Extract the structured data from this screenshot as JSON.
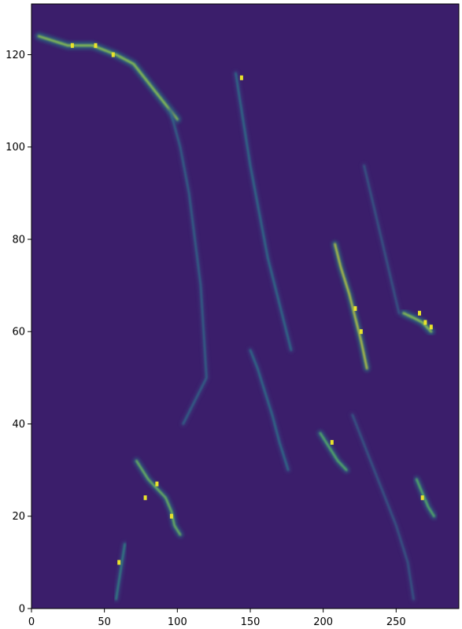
{
  "chart_data": {
    "type": "heatmap",
    "title": "",
    "xlabel": "",
    "ylabel": "",
    "xlim": [
      0,
      293
    ],
    "ylim": [
      0,
      131
    ],
    "colormap": "viridis",
    "background_color": "#3b1e6b",
    "x_ticks": [
      0,
      50,
      100,
      150,
      200,
      250
    ],
    "y_ticks": [
      0,
      20,
      40,
      60,
      80,
      100,
      120
    ],
    "grid": false,
    "legend": "none",
    "streaks": [
      {
        "label": "top-left bright band",
        "points": [
          [
            5,
            124
          ],
          [
            25,
            122
          ],
          [
            42,
            122
          ],
          [
            58,
            120
          ],
          [
            70,
            118
          ],
          [
            85,
            112
          ],
          [
            100,
            106
          ]
        ],
        "intensity": 0.85,
        "width": 3
      },
      {
        "label": "left long filament",
        "points": [
          [
            95,
            108
          ],
          [
            102,
            100
          ],
          [
            108,
            90
          ],
          [
            112,
            80
          ],
          [
            116,
            70
          ],
          [
            118,
            60
          ],
          [
            120,
            50
          ],
          [
            104,
            40
          ]
        ],
        "intensity": 0.4,
        "width": 2
      },
      {
        "label": "upper middle filament",
        "points": [
          [
            140,
            116
          ],
          [
            143,
            110
          ],
          [
            146,
            104
          ],
          [
            150,
            96
          ],
          [
            156,
            86
          ],
          [
            162,
            76
          ],
          [
            170,
            66
          ],
          [
            178,
            56
          ]
        ],
        "intensity": 0.45,
        "width": 2
      },
      {
        "label": "center bright filament",
        "points": [
          [
            208,
            79
          ],
          [
            212,
            74
          ],
          [
            218,
            68
          ],
          [
            222,
            63
          ],
          [
            226,
            58
          ],
          [
            230,
            52
          ]
        ],
        "intensity": 0.95,
        "width": 2.5
      },
      {
        "label": "right cluster",
        "points": [
          [
            255,
            64
          ],
          [
            262,
            63
          ],
          [
            268,
            62
          ],
          [
            274,
            60
          ]
        ],
        "intensity": 0.85,
        "width": 3
      },
      {
        "label": "lower left loop",
        "points": [
          [
            72,
            32
          ],
          [
            80,
            28
          ],
          [
            86,
            26
          ],
          [
            92,
            24
          ],
          [
            96,
            21
          ],
          [
            98,
            18
          ],
          [
            102,
            16
          ]
        ],
        "intensity": 0.8,
        "width": 2.5
      },
      {
        "label": "lower left stem",
        "points": [
          [
            64,
            14
          ],
          [
            62,
            10
          ],
          [
            60,
            6
          ],
          [
            58,
            2
          ]
        ],
        "intensity": 0.55,
        "width": 2
      },
      {
        "label": "lower right bright",
        "points": [
          [
            198,
            38
          ],
          [
            204,
            35
          ],
          [
            210,
            32
          ],
          [
            216,
            30
          ]
        ],
        "intensity": 0.75,
        "width": 2.5
      },
      {
        "label": "far right bottom",
        "points": [
          [
            264,
            28
          ],
          [
            268,
            25
          ],
          [
            272,
            22
          ],
          [
            276,
            20
          ]
        ],
        "intensity": 0.75,
        "width": 2.5
      },
      {
        "label": "middle diagonal lower",
        "points": [
          [
            150,
            56
          ],
          [
            155,
            52
          ],
          [
            160,
            47
          ],
          [
            165,
            42
          ],
          [
            170,
            36
          ],
          [
            176,
            30
          ]
        ],
        "intensity": 0.45,
        "width": 2
      },
      {
        "label": "right long diagonal",
        "points": [
          [
            228,
            96
          ],
          [
            234,
            88
          ],
          [
            240,
            80
          ],
          [
            246,
            72
          ],
          [
            252,
            64
          ]
        ],
        "intensity": 0.35,
        "width": 2
      },
      {
        "label": "bottom right diagonal",
        "points": [
          [
            220,
            42
          ],
          [
            230,
            34
          ],
          [
            240,
            26
          ],
          [
            250,
            18
          ],
          [
            258,
            10
          ],
          [
            262,
            2
          ]
        ],
        "intensity": 0.35,
        "width": 2
      }
    ],
    "bright_spots": [
      [
        56,
        120
      ],
      [
        44,
        122
      ],
      [
        28,
        122
      ],
      [
        96,
        20
      ],
      [
        86,
        27
      ],
      [
        78,
        24
      ],
      [
        222,
        65
      ],
      [
        226,
        60
      ],
      [
        270,
        62
      ],
      [
        274,
        61
      ],
      [
        266,
        64
      ],
      [
        206,
        36
      ],
      [
        268,
        24
      ],
      [
        60,
        10
      ],
      [
        144,
        115
      ]
    ]
  }
}
